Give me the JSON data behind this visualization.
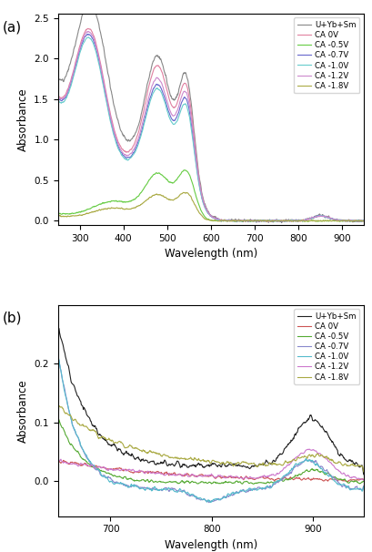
{
  "legend_labels": [
    "U+Yb+Sm",
    "CA 0V",
    "CA -0.5V",
    "CA -0.7V",
    "CA -1.0V",
    "CA -1.2V",
    "CA -1.8V"
  ],
  "colors_a": [
    "#888888",
    "#e080a0",
    "#66cc44",
    "#6666cc",
    "#66cccc",
    "#cc88cc",
    "#aaaa44"
  ],
  "colors_b": [
    "#222222",
    "#cc5555",
    "#55aa33",
    "#8888cc",
    "#55bbcc",
    "#cc77cc",
    "#aaaa44"
  ],
  "panel_a": {
    "xlim": [
      250,
      950
    ],
    "ylim": [
      -0.05,
      2.55
    ],
    "yticks": [
      0.0,
      0.5,
      1.0,
      1.5,
      2.0,
      2.5
    ],
    "xticks": [
      300,
      400,
      500,
      600,
      700,
      800,
      900
    ],
    "xlabel": "Wavelength (nm)",
    "ylabel": "Absorbance",
    "label": "(a)"
  },
  "panel_b": {
    "xlim": [
      648,
      950
    ],
    "ylim": [
      -0.06,
      0.3
    ],
    "yticks": [
      0.0,
      0.1,
      0.2
    ],
    "xticks": [
      700,
      800,
      900
    ],
    "xlabel": "Wavelength (nm)",
    "ylabel": "Absorbance",
    "label": "(b)"
  }
}
